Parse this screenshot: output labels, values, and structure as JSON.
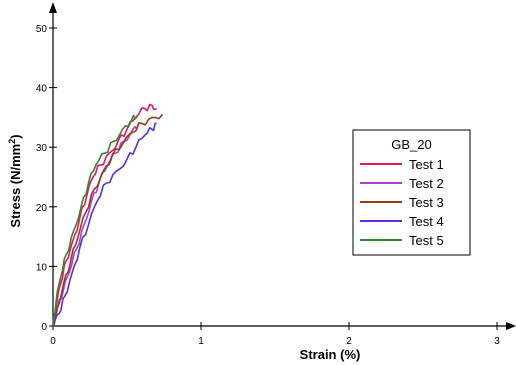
{
  "chart_data": {
    "type": "line",
    "xlabel": "Strain (%)",
    "ylabel": "Stress (N/mm",
    "ylabel_sup": "2",
    "ylabel_close": ")",
    "xlim": [
      0,
      3
    ],
    "ylim": [
      0,
      50
    ],
    "x_ticks": [
      0,
      1,
      2,
      3
    ],
    "x_tick_labels": [
      "0",
      "1",
      "2",
      "3"
    ],
    "y_ticks": [
      0,
      10,
      20,
      30,
      40,
      50
    ],
    "y_tick_labels": [
      "0",
      "10",
      "20",
      "30",
      "40",
      "50"
    ],
    "grid": false,
    "legend": {
      "title": "GB_20",
      "position": "right"
    },
    "series": [
      {
        "name": "Test 1",
        "color": "#e8175d",
        "points": [
          [
            0,
            0
          ],
          [
            0.02,
            3
          ],
          [
            0.05,
            7
          ],
          [
            0.09,
            11
          ],
          [
            0.13,
            14
          ],
          [
            0.18,
            18
          ],
          [
            0.23,
            22
          ],
          [
            0.27,
            25
          ],
          [
            0.32,
            27
          ],
          [
            0.38,
            29
          ],
          [
            0.44,
            31
          ],
          [
            0.5,
            33
          ],
          [
            0.56,
            35
          ],
          [
            0.62,
            36.5
          ],
          [
            0.67,
            37
          ],
          [
            0.7,
            36.5
          ]
        ]
      },
      {
        "name": "Test 2",
        "color": "#b23ad6",
        "points": [
          [
            0,
            0
          ],
          [
            0.03,
            3
          ],
          [
            0.07,
            6
          ],
          [
            0.11,
            9
          ],
          [
            0.16,
            13
          ],
          [
            0.21,
            17
          ],
          [
            0.26,
            21
          ],
          [
            0.31,
            24
          ],
          [
            0.37,
            27
          ],
          [
            0.42,
            29
          ],
          [
            0.48,
            31
          ],
          [
            0.54,
            33
          ],
          [
            0.58,
            34
          ]
        ]
      },
      {
        "name": "Test 3",
        "color": "#9b3b12",
        "points": [
          [
            0,
            0
          ],
          [
            0.03,
            3
          ],
          [
            0.07,
            7
          ],
          [
            0.12,
            11
          ],
          [
            0.17,
            15
          ],
          [
            0.22,
            19
          ],
          [
            0.28,
            23
          ],
          [
            0.34,
            26
          ],
          [
            0.4,
            28.5
          ],
          [
            0.47,
            30.5
          ],
          [
            0.54,
            32.5
          ],
          [
            0.6,
            34
          ],
          [
            0.67,
            35
          ],
          [
            0.74,
            35.5
          ]
        ]
      },
      {
        "name": "Test 4",
        "color": "#5a2ee0",
        "points": [
          [
            0,
            0
          ],
          [
            0.04,
            2
          ],
          [
            0.08,
            5
          ],
          [
            0.13,
            9
          ],
          [
            0.18,
            13
          ],
          [
            0.24,
            17
          ],
          [
            0.3,
            21
          ],
          [
            0.36,
            24
          ],
          [
            0.43,
            26
          ],
          [
            0.5,
            28
          ],
          [
            0.56,
            30
          ],
          [
            0.62,
            32
          ],
          [
            0.67,
            33
          ],
          [
            0.7,
            34
          ]
        ]
      },
      {
        "name": "Test 5",
        "color": "#2e8a2e",
        "points": [
          [
            0,
            0
          ],
          [
            0.02,
            4
          ],
          [
            0.05,
            8
          ],
          [
            0.09,
            12
          ],
          [
            0.14,
            16
          ],
          [
            0.19,
            20
          ],
          [
            0.24,
            24
          ],
          [
            0.29,
            27
          ],
          [
            0.35,
            29
          ],
          [
            0.41,
            31
          ],
          [
            0.47,
            33
          ],
          [
            0.53,
            34.5
          ],
          [
            0.57,
            35.2
          ]
        ]
      }
    ]
  }
}
